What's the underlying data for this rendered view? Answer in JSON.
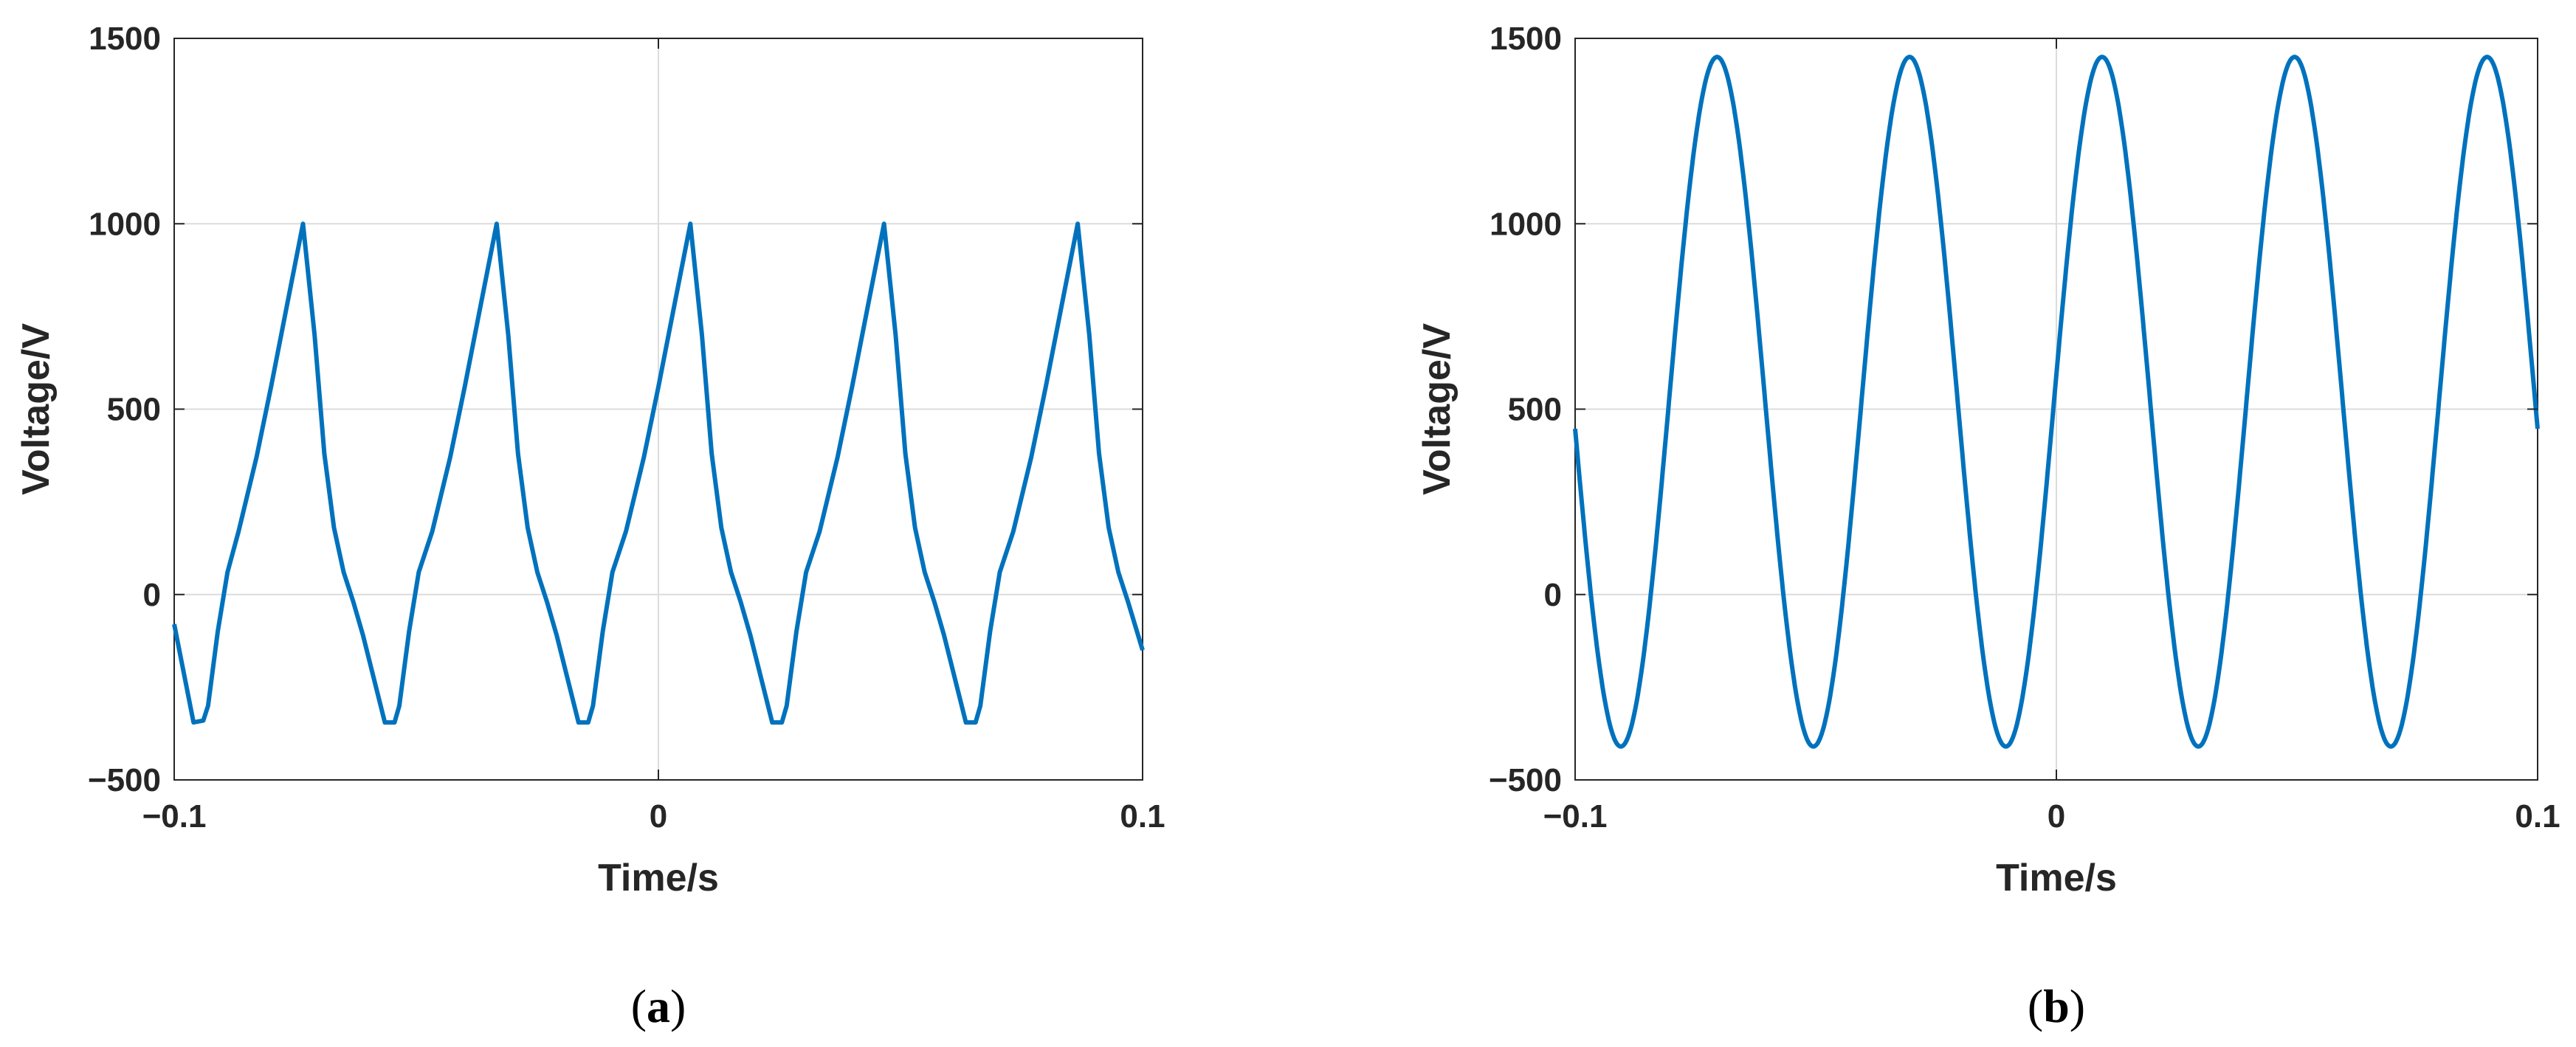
{
  "chart_data": [
    {
      "type": "line",
      "panel": "(a)",
      "caption_letter": "a",
      "xlabel": "Time/s",
      "ylabel": "Voltage/V",
      "xlim": [
        -0.1,
        0.1
      ],
      "ylim": [
        -500,
        1500
      ],
      "xticks": [
        -0.1,
        0,
        0.1
      ],
      "xtick_labels": [
        "−0.1",
        "0",
        "0.1"
      ],
      "yticks": [
        -500,
        0,
        500,
        1000,
        1500
      ],
      "ytick_labels": [
        "−500",
        "0",
        "500",
        "1000",
        "1500"
      ],
      "grid": true,
      "line_color": "#0072BD",
      "series": [
        {
          "x": [
            -0.1,
            -0.096,
            -0.094,
            -0.093,
            -0.091,
            -0.089,
            -0.0867,
            -0.083,
            -0.08,
            -0.0767,
            -0.0734,
            -0.071,
            -0.069,
            -0.067,
            -0.065,
            -0.063,
            -0.061,
            -0.0565,
            -0.0545,
            -0.0535,
            -0.0515,
            -0.0495,
            -0.0467,
            -0.043,
            -0.04,
            -0.0367,
            -0.0334,
            -0.031,
            -0.029,
            -0.027,
            -0.025,
            -0.023,
            -0.021,
            -0.0165,
            -0.0145,
            -0.0135,
            -0.0115,
            -0.0095,
            -0.0067,
            -0.003,
            0.0,
            0.0033,
            0.0066,
            0.009,
            0.011,
            0.013,
            0.015,
            0.017,
            0.019,
            0.0235,
            0.0255,
            0.0265,
            0.0285,
            0.0305,
            0.0333,
            0.037,
            0.04,
            0.0433,
            0.0466,
            0.049,
            0.051,
            0.053,
            0.055,
            0.057,
            0.059,
            0.0635,
            0.0655,
            0.0665,
            0.0685,
            0.0705,
            0.0733,
            0.077,
            0.08,
            0.0833,
            0.0866,
            0.089,
            0.091,
            0.093,
            0.095,
            0.097,
            0.1
          ],
          "y": [
            -80,
            -345,
            -340,
            -300,
            -100,
            60,
            170,
            370,
            560,
            780,
            1000,
            700,
            380,
            180,
            60,
            -20,
            -110,
            -345,
            -345,
            -300,
            -100,
            60,
            170,
            370,
            560,
            780,
            1000,
            700,
            380,
            180,
            60,
            -20,
            -110,
            -345,
            -345,
            -300,
            -100,
            60,
            170,
            370,
            560,
            780,
            1000,
            700,
            380,
            180,
            60,
            -20,
            -110,
            -345,
            -345,
            -300,
            -100,
            60,
            170,
            370,
            560,
            780,
            1000,
            700,
            380,
            180,
            60,
            -20,
            -110,
            -345,
            -345,
            -300,
            -100,
            60,
            170,
            370,
            560,
            780,
            1000,
            700,
            380,
            180,
            60,
            -20,
            -150
          ]
        }
      ]
    },
    {
      "type": "line",
      "panel": "(b)",
      "caption_letter": "b",
      "xlabel": "Time/s",
      "ylabel": "Voltage/V",
      "xlim": [
        -0.1,
        0.1
      ],
      "ylim": [
        -500,
        1500
      ],
      "xticks": [
        -0.1,
        0,
        0.1
      ],
      "xtick_labels": [
        "−0.1",
        "0",
        "0.1"
      ],
      "yticks": [
        -500,
        0,
        500,
        1000,
        1500
      ],
      "ytick_labels": [
        "−500",
        "0",
        "500",
        "1000",
        "1500"
      ],
      "grid": true,
      "line_color": "#0072BD",
      "sine": {
        "period": 0.04,
        "peak_time": -0.0705,
        "max": 1450,
        "min": -410
      }
    }
  ]
}
